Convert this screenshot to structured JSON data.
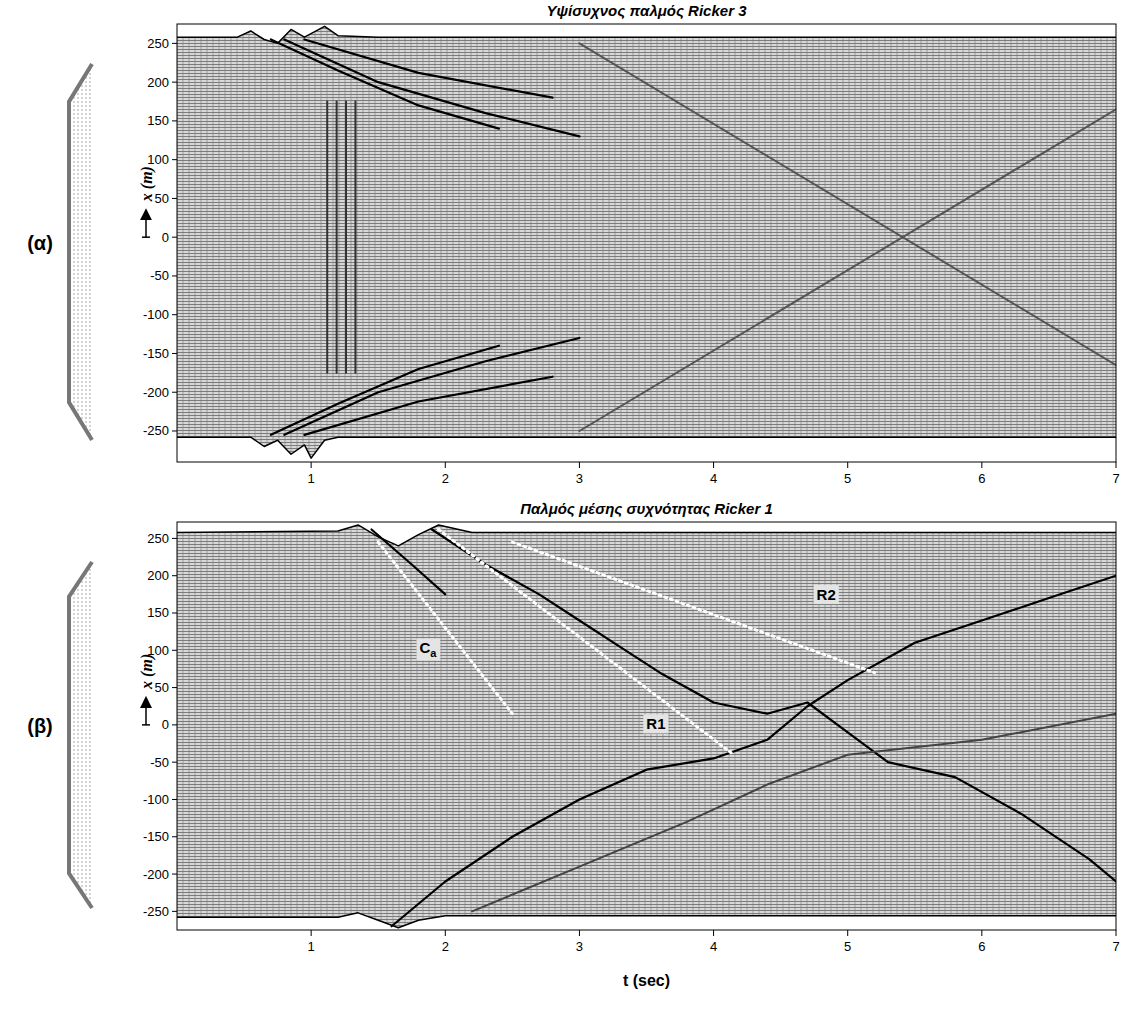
{
  "chart_data": [
    {
      "type": "line",
      "panel": "(α)",
      "title": "Υψίσυχνος παλμός Ricker 3",
      "y_label": "x (m)",
      "xlim": [
        0,
        7
      ],
      "xticks": [
        1,
        2,
        3,
        4,
        5,
        6,
        7
      ],
      "ylim": [
        -290,
        275
      ],
      "yticks": [
        -250,
        -200,
        -150,
        -100,
        -50,
        0,
        50,
        100,
        150,
        200,
        250
      ],
      "series": [
        {
          "color": "#000000",
          "line_style": "solid",
          "x": [
            0,
            0.45,
            0.55,
            0.65,
            0.75,
            0.85,
            0.95,
            1.1,
            1.2,
            1.5,
            7
          ],
          "values": [
            258,
            258,
            266,
            255,
            250,
            268,
            258,
            272,
            260,
            258,
            258
          ]
        },
        {
          "color": "#000000",
          "line_style": "solid",
          "x": [
            0,
            0.55,
            0.65,
            0.75,
            0.85,
            0.95,
            1.0,
            1.1,
            1.2,
            7
          ],
          "values": [
            -258,
            -258,
            -270,
            -262,
            -280,
            -268,
            -285,
            -262,
            -258,
            -258
          ]
        },
        {
          "color": "#000000",
          "line_style": "solid",
          "x": [
            0.7,
            1.2,
            1.8,
            2.4
          ],
          "values": [
            255,
            215,
            170,
            140
          ]
        },
        {
          "color": "#000000",
          "line_style": "solid",
          "x": [
            0.8,
            1.5,
            2.3,
            3.0
          ],
          "values": [
            255,
            200,
            160,
            130
          ]
        },
        {
          "color": "#000000",
          "line_style": "solid",
          "x": [
            0.95,
            1.8,
            2.8
          ],
          "values": [
            255,
            212,
            180
          ]
        },
        {
          "color": "#000000",
          "line_style": "solid",
          "x": [
            0.7,
            1.2,
            1.8,
            2.4
          ],
          "values": [
            -255,
            -215,
            -170,
            -140
          ]
        },
        {
          "color": "#000000",
          "line_style": "solid",
          "x": [
            0.8,
            1.5,
            2.3,
            3.0
          ],
          "values": [
            -255,
            -200,
            -160,
            -130
          ]
        },
        {
          "color": "#000000",
          "line_style": "solid",
          "x": [
            0.95,
            1.8,
            2.8
          ],
          "values": [
            -255,
            -212,
            -180
          ]
        },
        {
          "color": "#333333",
          "line_style": "solid",
          "x": [
            1.12,
            1.12
          ],
          "values": [
            -175,
            175
          ]
        },
        {
          "color": "#333333",
          "line_style": "solid",
          "x": [
            1.19,
            1.19
          ],
          "values": [
            -175,
            175
          ]
        },
        {
          "color": "#333333",
          "line_style": "solid",
          "x": [
            1.26,
            1.26
          ],
          "values": [
            -175,
            175
          ]
        },
        {
          "color": "#333333",
          "line_style": "solid",
          "x": [
            1.33,
            1.33
          ],
          "values": [
            -175,
            175
          ]
        },
        {
          "color": "#555555",
          "line_style": "solid",
          "x": [
            3.0,
            7.0
          ],
          "values": [
            -250,
            165
          ]
        },
        {
          "color": "#555555",
          "line_style": "solid",
          "x": [
            3.0,
            7.0
          ],
          "values": [
            250,
            -165
          ]
        }
      ]
    },
    {
      "type": "line",
      "panel": "(β)",
      "title": "Παλμός μέσης συχνότητας Ricker 1",
      "y_label": "x (m)",
      "x_label": "t (sec)",
      "xlim": [
        0,
        7
      ],
      "xticks": [
        1,
        2,
        3,
        4,
        5,
        6,
        7
      ],
      "ylim": [
        -275,
        272
      ],
      "yticks": [
        -250,
        -200,
        -150,
        -100,
        -50,
        0,
        50,
        100,
        150,
        200,
        250
      ],
      "series": [
        {
          "color": "#000000",
          "line_style": "solid",
          "x": [
            0,
            1.2,
            1.35,
            1.5,
            1.65,
            1.8,
            1.95,
            2.2,
            7
          ],
          "values": [
            258,
            260,
            268,
            252,
            240,
            255,
            268,
            258,
            258
          ]
        },
        {
          "color": "#000000",
          "line_style": "solid",
          "x": [
            0,
            1.2,
            1.35,
            1.5,
            1.65,
            1.8,
            2.0,
            7
          ],
          "values": [
            -258,
            -258,
            -252,
            -262,
            -272,
            -262,
            -256,
            -256
          ]
        },
        {
          "color": "#000000",
          "line_style": "solid",
          "x": [
            1.9,
            2.3,
            2.7,
            3.0,
            3.3,
            3.6,
            4.0,
            4.4,
            4.7,
            5.0,
            5.3,
            5.8,
            6.3,
            6.8,
            7.0
          ],
          "values": [
            262,
            215,
            175,
            140,
            105,
            70,
            30,
            15,
            30,
            -10,
            -50,
            -70,
            -120,
            -180,
            -210
          ]
        },
        {
          "color": "#000000",
          "line_style": "solid",
          "x": [
            1.6,
            2.0,
            2.5,
            3.0,
            3.5,
            4.0,
            4.4,
            4.7,
            5.0,
            5.5,
            6.0,
            6.5,
            7.0
          ],
          "values": [
            -270,
            -210,
            -150,
            -100,
            -60,
            -45,
            -20,
            25,
            60,
            110,
            140,
            170,
            200
          ]
        },
        {
          "color": "#000000",
          "line_style": "solid",
          "x": [
            1.45,
            1.75,
            2.0
          ],
          "values": [
            262,
            215,
            175
          ]
        },
        {
          "color": "#444444",
          "line_style": "solid",
          "x": [
            2.2,
            3.0,
            3.8,
            4.4,
            5.0,
            6.0,
            7.0
          ],
          "values": [
            -250,
            -190,
            -130,
            -80,
            -40,
            -20,
            15
          ]
        },
        {
          "name": "Ca",
          "color": "#ffffff",
          "line_style": "dashed",
          "x": [
            1.5,
            2.5
          ],
          "values": [
            245,
            15
          ]
        },
        {
          "name": "R1",
          "color": "#ffffff",
          "line_style": "dashed",
          "x": [
            1.95,
            4.15
          ],
          "values": [
            262,
            -40
          ]
        },
        {
          "name": "R2",
          "color": "#ffffff",
          "line_style": "dashed",
          "x": [
            2.5,
            5.2
          ],
          "values": [
            245,
            70
          ]
        }
      ]
    }
  ]
}
